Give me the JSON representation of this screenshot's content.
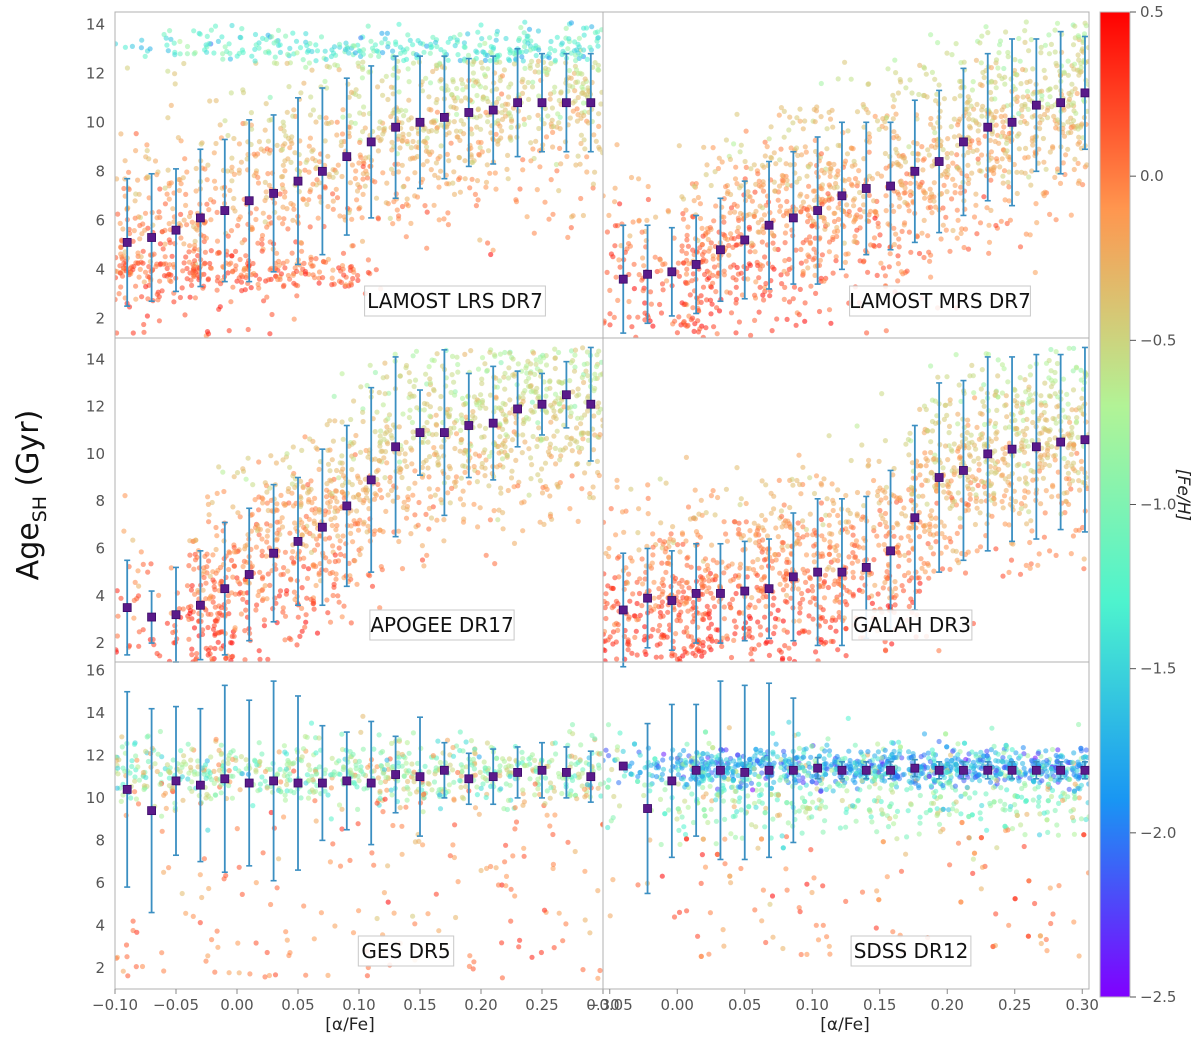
{
  "figure": {
    "ylabel_main": "Age",
    "ylabel_sub": "SH",
    "ylabel_unit": " (Gyr)",
    "colorbar_label": "[Fe/H]",
    "colorbar_ticks": [
      "0.5",
      "0.0",
      "−0.5",
      "−1.0",
      "−1.5",
      "−2.0",
      "−2.5"
    ],
    "colorbar_range": [
      -2.5,
      0.5
    ],
    "xlabel_left": "[α/Fe]",
    "xlabel_right": "[α/Fe]",
    "colormap": [
      "#8000ff",
      "#1996f3",
      "#4df3ce",
      "#b2f396",
      "#ff964f",
      "#ff0000"
    ]
  },
  "chart_data": [
    {
      "type": "scatter",
      "label": "LAMOST LRS DR7",
      "xlabel": "",
      "ylabel": "",
      "xlim": [
        -0.1,
        0.3
      ],
      "ylim": [
        1.2,
        14.5
      ],
      "yticks": [
        2,
        4,
        6,
        8,
        10,
        12,
        14
      ],
      "xticks": [],
      "binned": {
        "x": [
          -0.09,
          -0.07,
          -0.05,
          -0.03,
          -0.01,
          0.01,
          0.03,
          0.05,
          0.07,
          0.09,
          0.11,
          0.13,
          0.15,
          0.17,
          0.19,
          0.21,
          0.23,
          0.25,
          0.27,
          0.29
        ],
        "y": [
          5.1,
          5.3,
          5.6,
          6.1,
          6.4,
          6.8,
          7.1,
          7.6,
          8.0,
          8.6,
          9.2,
          9.8,
          10.0,
          10.2,
          10.4,
          10.5,
          10.8,
          10.8,
          10.8,
          10.8
        ],
        "yerr": [
          2.6,
          2.6,
          2.5,
          2.8,
          2.9,
          3.3,
          3.2,
          3.4,
          3.4,
          3.2,
          3.1,
          2.9,
          2.7,
          2.5,
          2.2,
          2.2,
          2.2,
          2.0,
          2.0,
          2.0
        ]
      }
    },
    {
      "type": "scatter",
      "label": "LAMOST MRS DR7",
      "xlabel": "",
      "ylabel": "",
      "xlim": [
        -0.055,
        0.305
      ],
      "ylim": [
        1.2,
        14.5
      ],
      "yticks": [],
      "xticks": [],
      "binned": {
        "x": [
          -0.04,
          -0.022,
          -0.004,
          0.014,
          0.032,
          0.05,
          0.068,
          0.086,
          0.104,
          0.122,
          0.14,
          0.158,
          0.176,
          0.194,
          0.212,
          0.23,
          0.248,
          0.266,
          0.284,
          0.302
        ],
        "y": [
          3.6,
          3.8,
          3.9,
          4.2,
          4.8,
          5.2,
          5.8,
          6.1,
          6.4,
          7.0,
          7.3,
          7.4,
          8.0,
          8.4,
          9.2,
          9.8,
          10.0,
          10.7,
          10.8,
          11.2
        ],
        "yerr": [
          2.2,
          2.0,
          1.8,
          2.0,
          2.1,
          2.4,
          2.6,
          2.7,
          3.0,
          3.0,
          2.7,
          2.6,
          2.9,
          2.9,
          3.0,
          3.0,
          3.4,
          2.7,
          2.9,
          2.3
        ]
      }
    },
    {
      "type": "scatter",
      "label": "APOGEE DR17",
      "xlabel": "",
      "ylabel": "",
      "xlim": [
        -0.1,
        0.3
      ],
      "ylim": [
        1.2,
        14.9
      ],
      "yticks": [
        2,
        4,
        6,
        8,
        10,
        12,
        14
      ],
      "xticks": [],
      "binned": {
        "x": [
          -0.09,
          -0.07,
          -0.05,
          -0.03,
          -0.01,
          0.01,
          0.03,
          0.05,
          0.07,
          0.09,
          0.11,
          0.13,
          0.15,
          0.17,
          0.19,
          0.21,
          0.23,
          0.25,
          0.27,
          0.29
        ],
        "y": [
          3.5,
          3.1,
          3.2,
          3.6,
          4.3,
          4.9,
          5.8,
          6.3,
          6.9,
          7.8,
          8.9,
          10.3,
          10.9,
          10.9,
          11.2,
          11.3,
          11.9,
          12.1,
          12.5,
          12.1
        ],
        "yerr": [
          2.0,
          1.1,
          2.0,
          2.3,
          2.8,
          2.8,
          2.9,
          2.7,
          3.3,
          3.4,
          3.9,
          3.8,
          1.8,
          3.5,
          2.2,
          2.4,
          1.6,
          1.3,
          1.4,
          2.4
        ]
      }
    },
    {
      "type": "scatter",
      "label": "GALAH DR3",
      "xlabel": "",
      "ylabel": "",
      "xlim": [
        -0.055,
        0.305
      ],
      "ylim": [
        1.2,
        14.9
      ],
      "yticks": [],
      "xticks": [],
      "binned": {
        "x": [
          -0.04,
          -0.022,
          -0.004,
          0.014,
          0.032,
          0.05,
          0.068,
          0.086,
          0.104,
          0.122,
          0.14,
          0.158,
          0.176,
          0.194,
          0.212,
          0.23,
          0.248,
          0.266,
          0.284,
          0.302
        ],
        "y": [
          3.4,
          3.9,
          3.8,
          4.1,
          4.1,
          4.2,
          4.3,
          4.8,
          5.0,
          5.0,
          5.2,
          5.9,
          7.3,
          9.0,
          9.3,
          10.0,
          10.2,
          10.3,
          10.5,
          10.6
        ],
        "yerr": [
          2.4,
          2.1,
          2.1,
          2.1,
          2.1,
          2.1,
          2.1,
          2.7,
          3.1,
          3.1,
          3.0,
          3.4,
          3.9,
          4.0,
          3.8,
          4.1,
          3.9,
          3.9,
          3.7,
          3.9
        ]
      }
    },
    {
      "type": "scatter",
      "label": "GES DR5",
      "xlabel": "[α/Fe]",
      "ylabel": "",
      "xlim": [
        -0.1,
        0.3
      ],
      "ylim": [
        1.0,
        16.4
      ],
      "yticks": [
        2,
        4,
        6,
        8,
        10,
        12,
        14,
        16
      ],
      "xticks": [
        -0.1,
        -0.05,
        0.0,
        0.05,
        0.1,
        0.15,
        0.2,
        0.25,
        0.3
      ],
      "xtick_labels": [
        "−0.10",
        "−0.05",
        "0.00",
        "0.05",
        "0.10",
        "0.15",
        "0.20",
        "0.25",
        "0.30"
      ],
      "binned": {
        "x": [
          -0.09,
          -0.07,
          -0.05,
          -0.03,
          -0.01,
          0.01,
          0.03,
          0.05,
          0.07,
          0.09,
          0.11,
          0.13,
          0.15,
          0.17,
          0.19,
          0.21,
          0.23,
          0.25,
          0.27,
          0.29
        ],
        "y": [
          10.4,
          9.4,
          10.8,
          10.6,
          10.9,
          10.7,
          10.8,
          10.7,
          10.7,
          10.8,
          10.7,
          11.1,
          11.0,
          11.3,
          10.9,
          11.0,
          11.2,
          11.3,
          11.2,
          11.0
        ],
        "yerr": [
          4.6,
          4.8,
          3.5,
          3.6,
          4.4,
          3.9,
          4.7,
          4.1,
          2.7,
          2.3,
          2.9,
          1.8,
          2.8,
          1.3,
          1.2,
          1.3,
          1.2,
          1.3,
          1.2,
          1.2
        ]
      }
    },
    {
      "type": "scatter",
      "label": "SDSS DR12",
      "xlabel": "[α/Fe]",
      "ylabel": "",
      "xlim": [
        -0.055,
        0.305
      ],
      "ylim": [
        1.0,
        16.4
      ],
      "yticks": [],
      "xticks": [
        -0.05,
        0.0,
        0.05,
        0.1,
        0.15,
        0.2,
        0.25,
        0.3
      ],
      "xtick_labels": [
        "−0.05",
        "0.00",
        "0.05",
        "0.10",
        "0.15",
        "0.20",
        "0.25",
        "0.30"
      ],
      "binned": {
        "x": [
          -0.04,
          -0.022,
          -0.004,
          0.014,
          0.032,
          0.05,
          0.068,
          0.086,
          0.104,
          0.122,
          0.14,
          0.158,
          0.176,
          0.194,
          0.212,
          0.23,
          0.248,
          0.266,
          0.284,
          0.302
        ],
        "y": [
          11.5,
          9.5,
          10.8,
          11.3,
          11.3,
          11.2,
          11.3,
          11.3,
          11.4,
          11.3,
          11.3,
          11.3,
          11.4,
          11.3,
          11.3,
          11.3,
          11.3,
          11.3,
          11.3,
          11.3
        ],
        "yerr": [
          0.0,
          4.0,
          3.6,
          3.1,
          4.2,
          4.1,
          4.1,
          3.4,
          0.5,
          0.4,
          0.4,
          0.4,
          0.4,
          0.4,
          0.4,
          0.4,
          0.4,
          0.4,
          0.4,
          0.4
        ]
      }
    }
  ]
}
